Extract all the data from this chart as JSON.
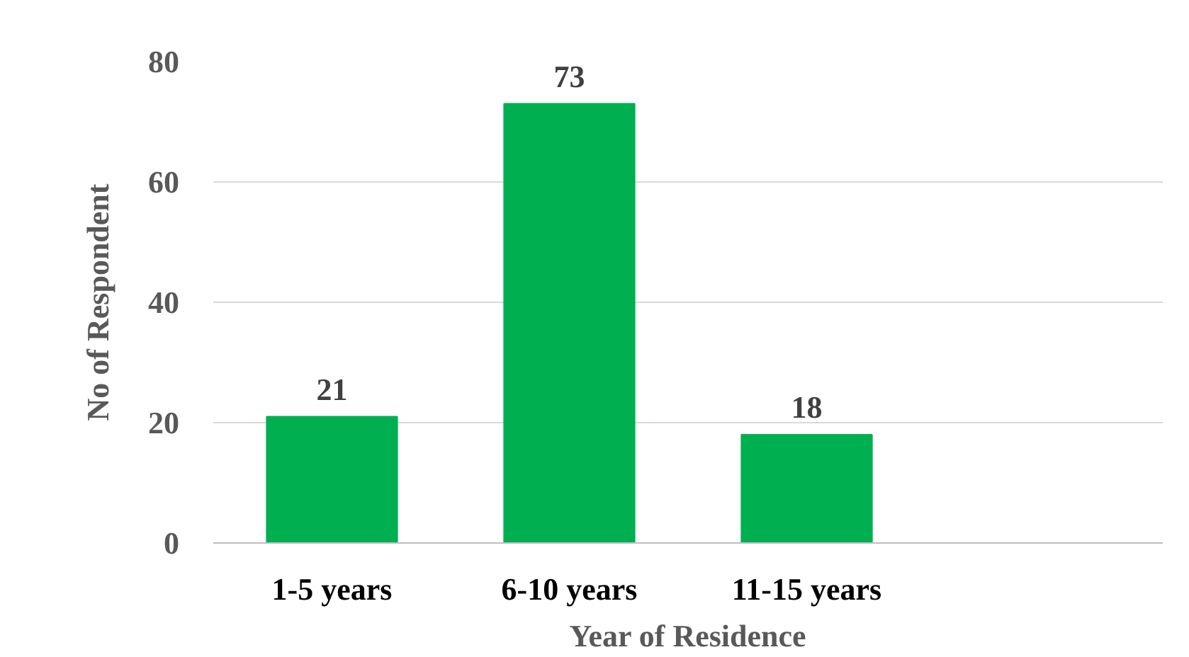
{
  "chart_data": {
    "type": "bar",
    "xlabel": "Year of Residence",
    "ylabel": "No of Respondent",
    "categories": [
      "1-5 years",
      "6-10 years",
      "11-15 years",
      null
    ],
    "values": [
      21,
      73,
      18,
      null
    ],
    "color": "#00b050",
    "ylim": [
      0,
      80
    ],
    "yticks": [
      0,
      20,
      40,
      60,
      80
    ],
    "grid": "y",
    "data_labels": true
  }
}
